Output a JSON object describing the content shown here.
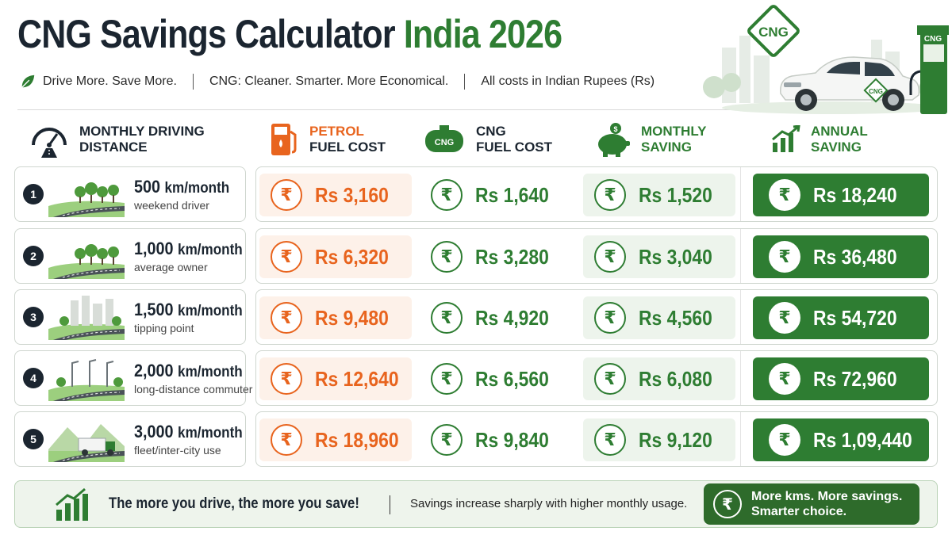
{
  "header": {
    "title_main": "CNG Savings Calculator",
    "title_accent": "India 2026",
    "taglines": [
      "Drive More. Save More.",
      "CNG: Cleaner. Smarter. More Economical.",
      "All costs in Indian Rupees (Rs)"
    ],
    "hero_badge": "CNG",
    "pump_label": "CNG",
    "car_badge": "CNG"
  },
  "columns": {
    "distance": [
      "MONTHLY DRIVING",
      "DISTANCE"
    ],
    "petrol": [
      "PETROL",
      "FUEL COST"
    ],
    "cng": [
      "CNG",
      "FUEL COST"
    ],
    "cng_tank_label": "CNG",
    "monthly": [
      "MONTHLY",
      "SAVING"
    ],
    "annual": [
      "ANNUAL",
      "SAVING"
    ]
  },
  "currency_symbol": "₹",
  "rows": [
    {
      "num": "1",
      "km": "500",
      "unit": "km/month",
      "who": "weekend driver",
      "petrol": "Rs 3,160",
      "cng": "Rs 1,640",
      "monthly": "Rs 1,520",
      "annual": "Rs 18,240",
      "scene": "trees-road"
    },
    {
      "num": "2",
      "km": "1,000",
      "unit": "km/month",
      "who": "average owner",
      "petrol": "Rs 6,320",
      "cng": "Rs 3,280",
      "monthly": "Rs 3,040",
      "annual": "Rs 36,480",
      "scene": "trees-road"
    },
    {
      "num": "3",
      "km": "1,500",
      "unit": "km/month",
      "who": "tipping point",
      "petrol": "Rs 9,480",
      "cng": "Rs 4,920",
      "monthly": "Rs 4,560",
      "annual": "Rs 54,720",
      "scene": "city-road"
    },
    {
      "num": "4",
      "km": "2,000",
      "unit": "km/month",
      "who": "long-distance commuter",
      "petrol": "Rs 12,640",
      "cng": "Rs 6,560",
      "monthly": "Rs 6,080",
      "annual": "Rs 72,960",
      "scene": "highway-lamps"
    },
    {
      "num": "5",
      "km": "3,000",
      "unit": "km/month",
      "who": "fleet/inter-city use",
      "petrol": "Rs 18,960",
      "cng": "Rs 9,840",
      "monthly": "Rs 9,120",
      "annual": "Rs 1,09,440",
      "scene": "truck-hills"
    }
  ],
  "footer": {
    "main": "The more you drive, the more you save!",
    "sub": "Savings increase sharply with higher monthly usage.",
    "pill": [
      "More kms. More savings.",
      "Smarter choice."
    ]
  },
  "colors": {
    "petrol": "#e8641e",
    "green": "#2e7d32",
    "dark": "#1b2530"
  }
}
